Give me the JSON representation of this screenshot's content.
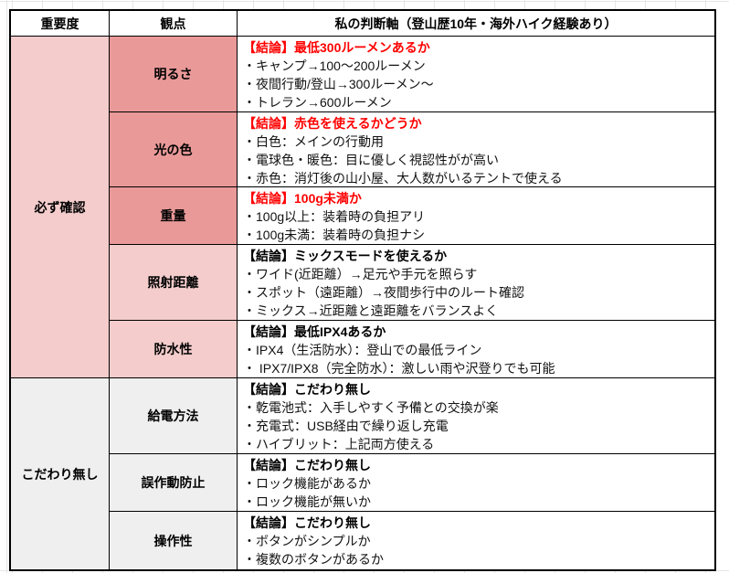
{
  "colors": {
    "red_text": "#ff0000",
    "black_text": "#000000",
    "pink_dark": "#ea9999",
    "pink_light": "#f4cccc",
    "gray_light": "#efefef",
    "white": "#ffffff",
    "gridline": "#e6e6e6"
  },
  "header": {
    "importance": "重要度",
    "viewpoint": "観点",
    "judgment": "私の判断軸（登山歴10年・海外ハイク経験あり）"
  },
  "sections": [
    {
      "importance": "必ず確認",
      "importance_bg": "#f4cccc",
      "rows": [
        {
          "viewpoint": "明るさ",
          "viewpoint_bg": "#ea9999",
          "conclusion": "【結論】最低300ルーメンあるか",
          "conclusion_color": "#ff0000",
          "bullets": [
            "・キャンプ→100〜200ルーメン",
            "・夜間行動/登山→300ルーメン〜",
            "・トレラン→600ルーメン"
          ],
          "height": 83
        },
        {
          "viewpoint": "光の色",
          "viewpoint_bg": "#ea9999",
          "conclusion": "【結論】赤色を使えるかどうか",
          "conclusion_color": "#ff0000",
          "bullets": [
            "・白色：メインの行動用",
            "・電球色・暖色：目に優しく視認性がが高い",
            "・赤色：消灯後の山小屋、大人数がいるテントで使える"
          ],
          "height": 82
        },
        {
          "viewpoint": "重量",
          "viewpoint_bg": "#ea9999",
          "conclusion": "【結論】100g未満か",
          "conclusion_color": "#ff0000",
          "bullets": [
            "・100g以上：装着時の負担アリ",
            "・100g未満：装着時の負担ナシ"
          ],
          "height": 63
        },
        {
          "viewpoint": "照射距離",
          "viewpoint_bg": "#f4cccc",
          "conclusion": "【結論】ミックスモードを使えるか",
          "conclusion_color": "#000000",
          "bullets": [
            "・ワイド(近距離）→足元や手元を照らす",
            "・スポット（遠距離）→夜間歩行中のルート確認",
            "・ミックス→近距離と遠距離をバランスよく"
          ],
          "height": 83
        },
        {
          "viewpoint": "防水性",
          "viewpoint_bg": "#f4cccc",
          "conclusion": "【結論】最低IPX4あるか",
          "conclusion_color": "#000000",
          "bullets": [
            "・IPX4（生活防水）：登山での最低ライン",
            "・ IPX7/IPX8（完全防水）：激しい雨や沢登りでも可能"
          ],
          "height": 63
        }
      ]
    },
    {
      "importance": "こだわり無し",
      "importance_bg": "#efefef",
      "rows": [
        {
          "viewpoint": "給電方法",
          "viewpoint_bg": "#efefef",
          "conclusion": "【結論】こだわり無し",
          "conclusion_color": "#000000",
          "bullets": [
            "・乾電池式：入手しやすく予備との交換が楽",
            "・充電式：USB経由で繰り返し充電",
            "・ハイブリット：上記両方使える"
          ],
          "height": 83
        },
        {
          "viewpoint": "誤作動防止",
          "viewpoint_bg": "#efefef",
          "conclusion": "【結論】こだわり無し",
          "conclusion_color": "#000000",
          "bullets": [
            "・ロック機能があるか",
            "・ロック機能が無いか"
          ],
          "height": 63
        },
        {
          "viewpoint": "操作性",
          "viewpoint_bg": "#efefef",
          "conclusion": "【結論】こだわり無し",
          "conclusion_color": "#000000",
          "bullets": [
            "・ボタンがシンプルか",
            "・複数のボタンがあるか"
          ],
          "height": 63
        }
      ]
    }
  ]
}
